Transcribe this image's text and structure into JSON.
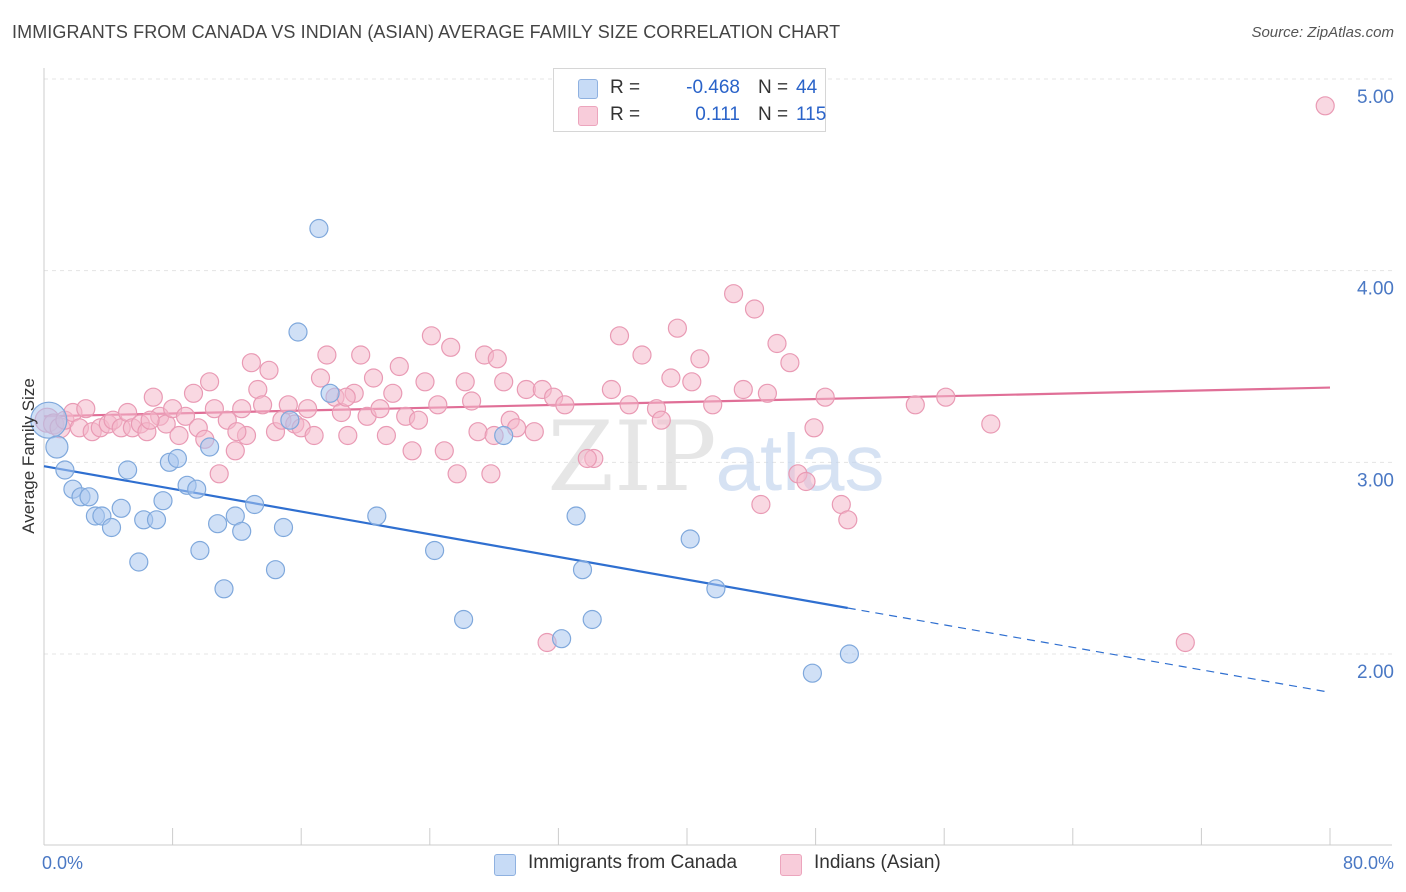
{
  "header": {
    "title": "IMMIGRANTS FROM CANADA VS INDIAN (ASIAN) AVERAGE FAMILY SIZE CORRELATION CHART",
    "source": "Source: ZipAtlas.com"
  },
  "watermark": "ZIPatlas",
  "legend": {
    "rows": [
      {
        "r_label": "R =",
        "r_value": "-0.468",
        "n_label": "N =",
        "n_value": "44"
      },
      {
        "r_label": "R =",
        "r_value": "0.111",
        "n_label": "N =",
        "n_value": "115"
      }
    ]
  },
  "colors": {
    "blue_fill": "#a9c7ee",
    "blue_stroke": "#7fa8dc",
    "blue_line": "#2f6fd0",
    "pink_fill": "#f4b8cb",
    "pink_stroke": "#e99ab4",
    "pink_line": "#e06f97",
    "grid": "#e4e4e4",
    "tick_text": "#4a78c4"
  },
  "chart_data": {
    "type": "scatter",
    "title": "IMMIGRANTS FROM CANADA VS INDIAN (ASIAN) AVERAGE FAMILY SIZE CORRELATION CHART",
    "xlabel": "",
    "ylabel": "Average Family Size",
    "xlim": [
      0,
      80
    ],
    "ylim": [
      1.0,
      5.2
    ],
    "x_tick_labels": [
      "0.0%",
      "80.0%"
    ],
    "y_ticks": [
      2.0,
      3.0,
      4.0,
      5.0
    ],
    "y_tick_labels": [
      "2.00",
      "3.00",
      "4.00",
      "5.00"
    ],
    "grid": true,
    "legend_position": "top-center",
    "series": [
      {
        "name": "Immigrants from Canada",
        "color": "blue",
        "r": -0.468,
        "n": 44,
        "trend": {
          "x0": 0,
          "y0": 2.98,
          "x1": 50,
          "y1": 2.24,
          "dash_to_x": 80,
          "dash_to_y": 1.8
        },
        "points": [
          [
            0.3,
            3.22,
            18
          ],
          [
            0.8,
            3.08,
            11
          ],
          [
            1.3,
            2.96,
            9
          ],
          [
            1.8,
            2.86,
            9
          ],
          [
            2.3,
            2.82,
            9
          ],
          [
            2.8,
            2.82,
            9
          ],
          [
            3.2,
            2.72,
            9
          ],
          [
            3.6,
            2.72,
            9
          ],
          [
            4.2,
            2.66,
            9
          ],
          [
            4.8,
            2.76,
            9
          ],
          [
            5.2,
            2.96,
            9
          ],
          [
            5.9,
            2.48,
            9
          ],
          [
            6.2,
            2.7,
            9
          ],
          [
            7.0,
            2.7,
            9
          ],
          [
            7.4,
            2.8,
            9
          ],
          [
            7.8,
            3.0,
            9
          ],
          [
            8.3,
            3.02,
            9
          ],
          [
            8.9,
            2.88,
            9
          ],
          [
            9.5,
            2.86,
            9
          ],
          [
            9.7,
            2.54,
            9
          ],
          [
            10.3,
            3.08,
            9
          ],
          [
            10.8,
            2.68,
            9
          ],
          [
            11.2,
            2.34,
            9
          ],
          [
            11.9,
            2.72,
            9
          ],
          [
            12.3,
            2.64,
            9
          ],
          [
            13.1,
            2.78,
            9
          ],
          [
            14.4,
            2.44,
            9
          ],
          [
            14.9,
            2.66,
            9
          ],
          [
            15.3,
            3.22,
            9
          ],
          [
            15.8,
            3.68,
            9
          ],
          [
            17.1,
            4.22,
            9
          ],
          [
            17.8,
            3.36,
            9
          ],
          [
            20.7,
            2.72,
            9
          ],
          [
            24.3,
            2.54,
            9
          ],
          [
            26.1,
            2.18,
            9
          ],
          [
            28.6,
            3.14,
            9
          ],
          [
            32.2,
            2.08,
            9
          ],
          [
            33.1,
            2.72,
            9
          ],
          [
            33.5,
            2.44,
            9
          ],
          [
            34.1,
            2.18,
            9
          ],
          [
            40.2,
            2.6,
            9
          ],
          [
            41.8,
            2.34,
            9
          ],
          [
            47.8,
            1.9,
            9
          ],
          [
            50.1,
            2.0,
            9
          ]
        ]
      },
      {
        "name": "Indians (Asian)",
        "color": "pink",
        "r": 0.111,
        "n": 115,
        "trend": {
          "x0": 0,
          "y0": 3.24,
          "x1": 80,
          "y1": 3.39
        },
        "points": [
          [
            0.2,
            3.22,
            12
          ],
          [
            0.6,
            3.2,
            10
          ],
          [
            1.0,
            3.18,
            10
          ],
          [
            1.3,
            3.22,
            9
          ],
          [
            1.8,
            3.26,
            9
          ],
          [
            2.2,
            3.18,
            9
          ],
          [
            2.6,
            3.28,
            9
          ],
          [
            3.0,
            3.16,
            9
          ],
          [
            3.5,
            3.18,
            9
          ],
          [
            4.0,
            3.2,
            9
          ],
          [
            4.3,
            3.22,
            9
          ],
          [
            4.8,
            3.18,
            9
          ],
          [
            5.2,
            3.26,
            9
          ],
          [
            5.5,
            3.18,
            9
          ],
          [
            6.0,
            3.2,
            9
          ],
          [
            6.4,
            3.16,
            9
          ],
          [
            6.8,
            3.34,
            9
          ],
          [
            7.2,
            3.24,
            9
          ],
          [
            7.6,
            3.2,
            9
          ],
          [
            8.0,
            3.28,
            9
          ],
          [
            8.4,
            3.14,
            9
          ],
          [
            8.8,
            3.24,
            9
          ],
          [
            9.3,
            3.36,
            9
          ],
          [
            9.6,
            3.18,
            9
          ],
          [
            10.0,
            3.12,
            9
          ],
          [
            10.3,
            3.42,
            9
          ],
          [
            10.6,
            3.28,
            9
          ],
          [
            10.9,
            2.94,
            9
          ],
          [
            11.4,
            3.22,
            9
          ],
          [
            11.9,
            3.06,
            9
          ],
          [
            12.3,
            3.28,
            9
          ],
          [
            12.6,
            3.14,
            9
          ],
          [
            12.9,
            3.52,
            9
          ],
          [
            13.3,
            3.38,
            9
          ],
          [
            13.6,
            3.3,
            9
          ],
          [
            14.0,
            3.48,
            9
          ],
          [
            14.4,
            3.16,
            9
          ],
          [
            14.8,
            3.22,
            9
          ],
          [
            15.2,
            3.3,
            9
          ],
          [
            15.6,
            3.2,
            9
          ],
          [
            16.0,
            3.18,
            9
          ],
          [
            16.4,
            3.28,
            9
          ],
          [
            16.8,
            3.14,
            9
          ],
          [
            17.2,
            3.44,
            9
          ],
          [
            17.6,
            3.56,
            9
          ],
          [
            18.1,
            3.34,
            9
          ],
          [
            18.5,
            3.26,
            9
          ],
          [
            18.9,
            3.14,
            9
          ],
          [
            19.3,
            3.36,
            9
          ],
          [
            19.7,
            3.56,
            9
          ],
          [
            20.1,
            3.24,
            9
          ],
          [
            20.5,
            3.44,
            9
          ],
          [
            20.9,
            3.28,
            9
          ],
          [
            21.3,
            3.14,
            9
          ],
          [
            21.7,
            3.36,
            9
          ],
          [
            22.1,
            3.5,
            9
          ],
          [
            22.5,
            3.24,
            9
          ],
          [
            22.9,
            3.06,
            9
          ],
          [
            23.3,
            3.22,
            9
          ],
          [
            23.7,
            3.42,
            9
          ],
          [
            24.1,
            3.66,
            9
          ],
          [
            24.5,
            3.3,
            9
          ],
          [
            24.9,
            3.06,
            9
          ],
          [
            25.3,
            3.6,
            9
          ],
          [
            25.7,
            2.94,
            9
          ],
          [
            26.2,
            3.42,
            9
          ],
          [
            26.6,
            3.32,
            9
          ],
          [
            27.0,
            3.16,
            9
          ],
          [
            27.4,
            3.56,
            9
          ],
          [
            27.8,
            2.94,
            9
          ],
          [
            28.2,
            3.54,
            9
          ],
          [
            28.6,
            3.42,
            9
          ],
          [
            29.0,
            3.22,
            9
          ],
          [
            29.4,
            3.18,
            9
          ],
          [
            30.0,
            3.38,
            9
          ],
          [
            30.5,
            3.16,
            9
          ],
          [
            31.0,
            3.38,
            9
          ],
          [
            31.3,
            2.06,
            9
          ],
          [
            31.7,
            3.34,
            9
          ],
          [
            32.4,
            3.3,
            9
          ],
          [
            34.2,
            3.02,
            9
          ],
          [
            35.3,
            3.38,
            9
          ],
          [
            35.8,
            3.66,
            9
          ],
          [
            36.4,
            3.3,
            9
          ],
          [
            37.2,
            3.56,
            9
          ],
          [
            38.1,
            3.28,
            9
          ],
          [
            39.0,
            3.44,
            9
          ],
          [
            39.4,
            3.7,
            9
          ],
          [
            40.3,
            3.42,
            9
          ],
          [
            40.8,
            3.54,
            9
          ],
          [
            41.6,
            3.3,
            9
          ],
          [
            42.9,
            3.88,
            9
          ],
          [
            43.5,
            3.38,
            9
          ],
          [
            44.2,
            3.8,
            9
          ],
          [
            44.6,
            2.78,
            9
          ],
          [
            45.6,
            3.62,
            9
          ],
          [
            46.4,
            3.52,
            9
          ],
          [
            46.9,
            2.94,
            9
          ],
          [
            47.4,
            2.9,
            9
          ],
          [
            47.9,
            3.18,
            9
          ],
          [
            48.6,
            3.34,
            9
          ],
          [
            49.6,
            2.78,
            9
          ],
          [
            50.0,
            2.7,
            9
          ],
          [
            54.2,
            3.3,
            9
          ],
          [
            56.1,
            3.34,
            9
          ],
          [
            58.9,
            3.2,
            9
          ],
          [
            71.0,
            2.06,
            9
          ],
          [
            79.7,
            4.86,
            9
          ],
          [
            12.0,
            3.16,
            9
          ],
          [
            28.0,
            3.14,
            9
          ],
          [
            33.8,
            3.02,
            9
          ],
          [
            38.4,
            3.22,
            9
          ],
          [
            45.0,
            3.36,
            9
          ],
          [
            6.6,
            3.22,
            9
          ],
          [
            18.8,
            3.34,
            9
          ]
        ]
      }
    ]
  },
  "bottom_legend": {
    "items": [
      {
        "label": "Immigrants from Canada"
      },
      {
        "label": "Indians (Asian)"
      }
    ]
  }
}
